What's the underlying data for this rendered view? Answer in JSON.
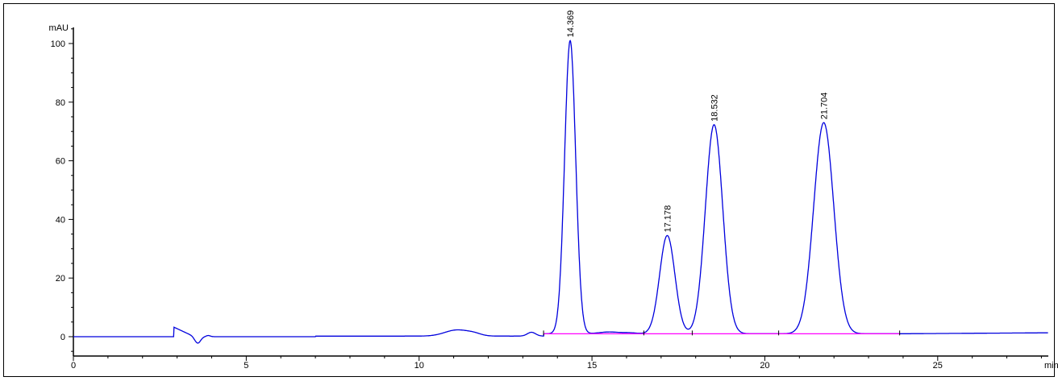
{
  "chart_data": {
    "type": "line",
    "title": "",
    "xlabel": "min",
    "ylabel": "mAU",
    "xlim": [
      0,
      28.2
    ],
    "ylim": [
      -6.6,
      105.5
    ],
    "x_ticks": [
      0,
      5,
      10,
      15,
      20,
      25
    ],
    "y_ticks": [
      0,
      20,
      40,
      60,
      80,
      100
    ],
    "grid": false,
    "legend": "none",
    "colors": {
      "trace": "#0000dd",
      "baseline": "#ff00ff",
      "axis": "#000000"
    },
    "peaks": [
      {
        "label": "14.369",
        "rt": 14.369,
        "height": 101
      },
      {
        "label": "17.178",
        "rt": 17.178,
        "height": 34.5
      },
      {
        "label": "18.532",
        "rt": 18.532,
        "height": 72.3
      },
      {
        "label": "21.704",
        "rt": 21.704,
        "height": 73
      }
    ],
    "integration_baseline": {
      "start": 13.6,
      "end": 23.9,
      "level": 1.0
    }
  }
}
